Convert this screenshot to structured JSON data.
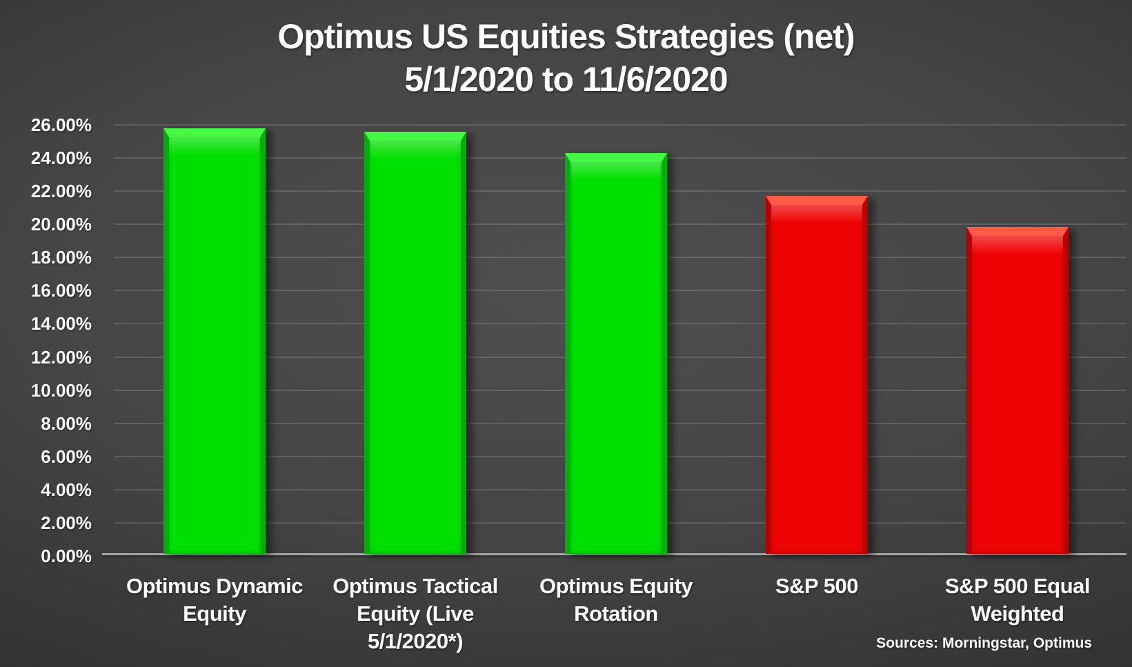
{
  "title": {
    "line1": "Optimus US Equities Strategies (net)",
    "line2": "5/1/2020 to 11/6/2020"
  },
  "source_note": "Sources: Morningstar, Optimus",
  "colors": {
    "background_center": "#4f4f4f",
    "background_edge": "#232323",
    "text": "#ffffff",
    "axis_line": "#a6a6a6",
    "gridline": "rgba(255,255,255,0.14)",
    "green": {
      "fill": "#00e000",
      "light": "#45f845",
      "side": "#00ae0c"
    },
    "red": {
      "fill": "#ee0404",
      "light": "#ff5a48",
      "side": "#b80000"
    }
  },
  "chart_data": {
    "type": "bar",
    "title": "Optimus US Equities Strategies (net) 5/1/2020 to 11/6/2020",
    "categories": [
      "Optimus Dynamic Equity",
      "Optimus Tactical Equity (Live 5/1/2020*)",
      "Optimus Equity Rotation",
      "S&P 500",
      "S&P 500 Equal Weighted"
    ],
    "category_lines": [
      [
        "Optimus Dynamic",
        "Equity"
      ],
      [
        "Optimus Tactical",
        "Equity (Live",
        "5/1/2020*)"
      ],
      [
        "Optimus Equity",
        "Rotation"
      ],
      [
        "S&P 500"
      ],
      [
        "S&P 500 Equal",
        "Weighted"
      ]
    ],
    "values": [
      25.65,
      25.45,
      24.15,
      21.6,
      19.7
    ],
    "bar_colors": [
      "green",
      "green",
      "green",
      "red",
      "red"
    ],
    "xlabel": "",
    "ylabel": "",
    "ylim": [
      0,
      26
    ],
    "ytick_step": 2,
    "ytick_labels": [
      "0.00%",
      "2.00%",
      "4.00%",
      "6.00%",
      "8.00%",
      "10.00%",
      "12.00%",
      "14.00%",
      "16.00%",
      "18.00%",
      "20.00%",
      "22.00%",
      "24.00%",
      "26.00%"
    ],
    "grid": true,
    "legend": false
  }
}
